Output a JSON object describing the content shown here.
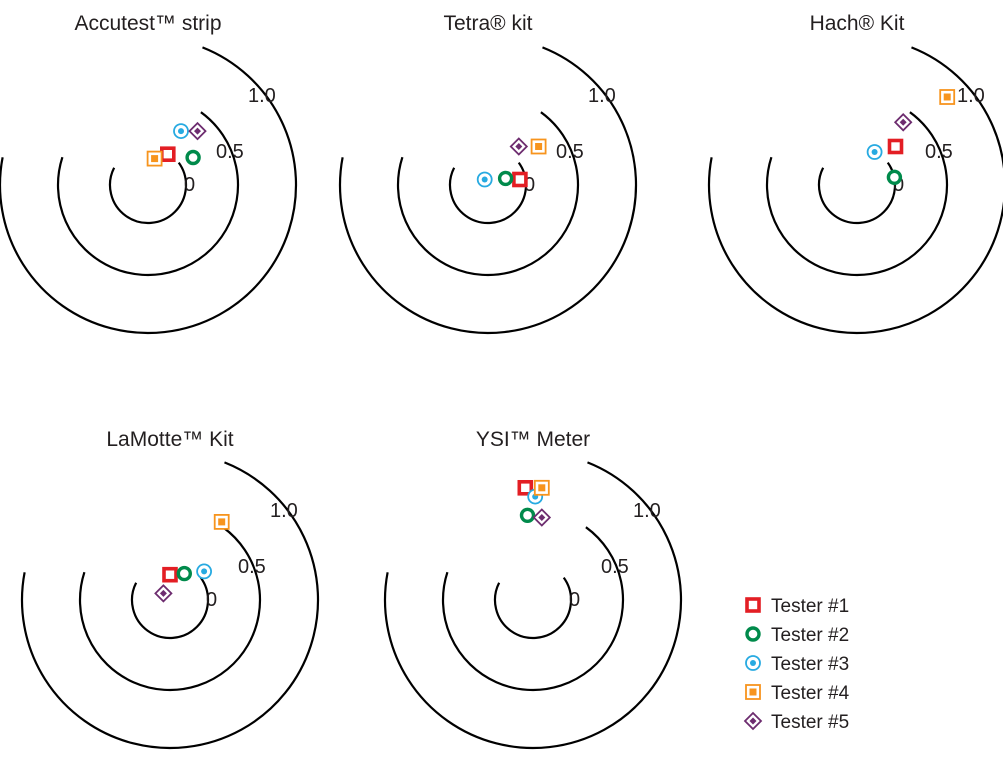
{
  "chart_data": {
    "type": "scatter",
    "ring_labels": [
      "0",
      "0.5",
      "1.0"
    ],
    "ring_values": [
      0,
      0.5,
      1.0
    ],
    "legend": [
      {
        "name": "Tester #1",
        "marker": "square-hollow",
        "color": "#e31e24"
      },
      {
        "name": "Tester #2",
        "marker": "circle-hollow",
        "color": "#008a4b"
      },
      {
        "name": "Tester #3",
        "marker": "circle-dot",
        "color": "#27aae1"
      },
      {
        "name": "Tester #4",
        "marker": "square-dot",
        "color": "#f7941d"
      },
      {
        "name": "Tester #5",
        "marker": "diamond-dot",
        "color": "#6d2c6f"
      }
    ],
    "panels": [
      {
        "title": "Accutest™ strip",
        "points": [
          {
            "tester": "Tester #1",
            "x": 0.18,
            "y": 0.28
          },
          {
            "tester": "Tester #2",
            "x": 0.41,
            "y": 0.25
          },
          {
            "tester": "Tester #3",
            "x": 0.3,
            "y": 0.49
          },
          {
            "tester": "Tester #4",
            "x": 0.06,
            "y": 0.24
          },
          {
            "tester": "Tester #5",
            "x": 0.45,
            "y": 0.49
          }
        ]
      },
      {
        "title": "Tetra® kit",
        "points": [
          {
            "tester": "Tester #1",
            "x": 0.29,
            "y": 0.05
          },
          {
            "tester": "Tester #2",
            "x": 0.16,
            "y": 0.06
          },
          {
            "tester": "Tester #3",
            "x": -0.03,
            "y": 0.05
          },
          {
            "tester": "Tester #4",
            "x": 0.46,
            "y": 0.35
          },
          {
            "tester": "Tester #5",
            "x": 0.28,
            "y": 0.35
          }
        ]
      },
      {
        "title": "Hach® Kit",
        "points": [
          {
            "tester": "Tester #1",
            "x": 0.35,
            "y": 0.35
          },
          {
            "tester": "Tester #2",
            "x": 0.34,
            "y": 0.07
          },
          {
            "tester": "Tester #3",
            "x": 0.16,
            "y": 0.3
          },
          {
            "tester": "Tester #4",
            "x": 0.82,
            "y": 0.8
          },
          {
            "tester": "Tester #5",
            "x": 0.42,
            "y": 0.57
          }
        ]
      },
      {
        "title": "LaMotte™ Kit",
        "points": [
          {
            "tester": "Tester #1",
            "x": 0.0,
            "y": 0.23
          },
          {
            "tester": "Tester #2",
            "x": 0.13,
            "y": 0.24
          },
          {
            "tester": "Tester #3",
            "x": 0.31,
            "y": 0.26
          },
          {
            "tester": "Tester #4",
            "x": 0.47,
            "y": 0.71
          },
          {
            "tester": "Tester #5",
            "x": -0.06,
            "y": 0.06
          }
        ]
      },
      {
        "title": "YSI™ Meter",
        "points": [
          {
            "tester": "Tester #1",
            "x": -0.07,
            "y": 1.02
          },
          {
            "tester": "Tester #2",
            "x": -0.05,
            "y": 0.77
          },
          {
            "tester": "Tester #3",
            "x": 0.02,
            "y": 0.94
          },
          {
            "tester": "Tester #4",
            "x": 0.08,
            "y": 1.02
          },
          {
            "tester": "Tester #5",
            "x": 0.08,
            "y": 0.75
          }
        ]
      }
    ]
  }
}
